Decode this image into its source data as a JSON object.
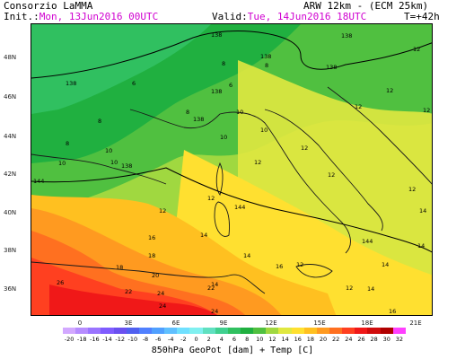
{
  "header": {
    "organization": "Consorzio LaMMA",
    "model": "ARW 12km - (ECM 25km)",
    "init_label": "Init.:",
    "init_value": "Mon, 13Jun2016 00UTC",
    "valid_label": "Valid:",
    "valid_value": "Tue, 14Jun2016 18UTC",
    "lead_time": "T=+42h"
  },
  "map": {
    "lat_labels": [
      "48N",
      "46N",
      "44N",
      "42N",
      "40N",
      "38N",
      "36N"
    ],
    "lon_labels": [
      "0",
      "3E",
      "6E",
      "9E",
      "12E",
      "15E",
      "18E",
      "21E"
    ],
    "contour_labels": [
      "138",
      "138",
      "138",
      "138",
      "138",
      "138",
      "138",
      "138",
      "144",
      "144",
      "144"
    ],
    "temp_labels": [
      "6",
      "6",
      "8",
      "8",
      "8",
      "10",
      "10",
      "10",
      "10",
      "12",
      "12",
      "12",
      "12",
      "12",
      "12",
      "12",
      "12",
      "12",
      "12",
      "14",
      "14",
      "14",
      "14",
      "14",
      "16",
      "18",
      "18",
      "20",
      "22",
      "22",
      "24",
      "24",
      "24",
      "26",
      "14",
      "16",
      "16",
      "8",
      "8",
      "10",
      "10",
      "12",
      "12",
      "14"
    ]
  },
  "legend": {
    "values": [
      "-20",
      "-18",
      "-16",
      "-14",
      "-12",
      "-10",
      "-8",
      "-6",
      "-4",
      "-2",
      "0",
      "2",
      "4",
      "6",
      "8",
      "10",
      "12",
      "14",
      "16",
      "18",
      "20",
      "22",
      "24",
      "26",
      "28",
      "30",
      "32"
    ],
    "colors": [
      "#d2a8ff",
      "#b68cff",
      "#9a74ff",
      "#7f5cff",
      "#6a50f0",
      "#5060f0",
      "#5080ff",
      "#50a0ff",
      "#60c0ff",
      "#70e0ff",
      "#80f0f0",
      "#60e0c0",
      "#40d090",
      "#30c060",
      "#20b040",
      "#50c040",
      "#a0d840",
      "#e0e840",
      "#ffe030",
      "#ffc020",
      "#ff9a20",
      "#ff7020",
      "#ff4020",
      "#f01818",
      "#d00c0c",
      "#b00000",
      "#ff40ff"
    ],
    "caption": "850hPa GeoPot [dam] + Temp [C]"
  }
}
